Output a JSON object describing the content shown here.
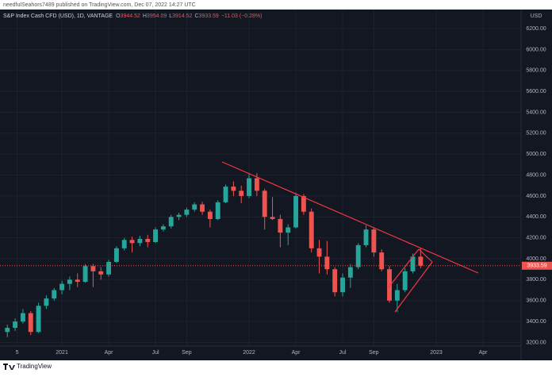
{
  "header": {
    "published": "needfulSeahors7489 published on TradingView.com, Dec 07, 2022 14:27 UTC",
    "footer": "TradingView"
  },
  "chart_data": {
    "type": "candlestick",
    "symbol": "S&P Index Cash CFD (USD), 1D, VANTAGE",
    "ohlc": [
      {
        "key": "O",
        "value": "3944.52"
      },
      {
        "key": "H",
        "value": "3954.09"
      },
      {
        "key": "L",
        "value": "3914.52"
      },
      {
        "key": "C",
        "value": "3933.59"
      }
    ],
    "change": "−11.03 (−0.28%)",
    "currency": "USD",
    "last_price_label": "3933.59",
    "up_color": "#26a69a",
    "down_color": "#ef5350",
    "grid": true,
    "x": [
      -3.5,
      -3,
      -2.5,
      -2,
      -1.5,
      -1,
      -0.5,
      0,
      0.5,
      1,
      1.5,
      2,
      2.5,
      3,
      3.5,
      4,
      4.5,
      5,
      5.5,
      6,
      6.5,
      7,
      7.5,
      8,
      8.5,
      9,
      9.5,
      10,
      10.5,
      11,
      11.5,
      12,
      12.5,
      13,
      13.5,
      14,
      14.5,
      15,
      15.5,
      16,
      16.5,
      17,
      17.5,
      18,
      18.5,
      19,
      19.5,
      20,
      20.5,
      21,
      21.5,
      22,
      22.5,
      23
    ],
    "open": [
      3300,
      3340,
      3400,
      3480,
      3300,
      3550,
      3620,
      3700,
      3760,
      3800,
      3780,
      3930,
      3880,
      3850,
      3970,
      4100,
      4180,
      4150,
      4190,
      4160,
      4280,
      4310,
      4400,
      4420,
      4470,
      4520,
      4450,
      4380,
      4540,
      4690,
      4650,
      4600,
      4770,
      4650,
      4400,
      4380,
      4250,
      4300,
      4600,
      4450,
      4100,
      4020,
      3900,
      3680,
      3820,
      3920,
      4130,
      4280,
      4060,
      3900,
      3600,
      3700,
      3880,
      4020
    ],
    "high": [
      3370,
      3430,
      3520,
      3500,
      3580,
      3650,
      3720,
      3790,
      3830,
      3860,
      3950,
      3950,
      3920,
      3990,
      4120,
      4200,
      4210,
      4220,
      4230,
      4300,
      4330,
      4420,
      4440,
      4490,
      4540,
      4545,
      4470,
      4560,
      4710,
      4740,
      4700,
      4810,
      4818,
      4670,
      4590,
      4420,
      4330,
      4630,
      4620,
      4480,
      4180,
      4170,
      3920,
      3860,
      3950,
      4150,
      4320,
      4300,
      4090,
      3930,
      3760,
      3910,
      4050,
      4100
    ],
    "low": [
      3250,
      3310,
      3380,
      3270,
      3290,
      3520,
      3600,
      3660,
      3700,
      3730,
      3770,
      3730,
      3800,
      3830,
      3960,
      4080,
      4060,
      4120,
      4110,
      4150,
      4260,
      4290,
      4370,
      4400,
      4450,
      4420,
      4300,
      4370,
      4530,
      4600,
      4530,
      4580,
      4600,
      4280,
      4370,
      4110,
      4130,
      4290,
      4420,
      4060,
      3860,
      3850,
      3640,
      3640,
      3720,
      3900,
      4110,
      4020,
      3880,
      3580,
      3490,
      3680,
      3860,
      3910
    ],
    "close": [
      3340,
      3400,
      3480,
      3300,
      3550,
      3620,
      3700,
      3760,
      3800,
      3780,
      3930,
      3880,
      3850,
      3970,
      4100,
      4180,
      4150,
      4190,
      4160,
      4280,
      4310,
      4400,
      4420,
      4470,
      4520,
      4450,
      4380,
      4540,
      4690,
      4650,
      4600,
      4770,
      4650,
      4400,
      4380,
      4250,
      4300,
      4600,
      4450,
      4100,
      4020,
      3900,
      3680,
      3820,
      3920,
      4130,
      4280,
      4060,
      3900,
      3600,
      3700,
      3880,
      4020,
      3933.59
    ],
    "xlim": [
      -3.97,
      29.44
    ],
    "xticks": [
      {
        "value": -2.87,
        "label": "5"
      },
      {
        "value": 0,
        "label": "2021"
      },
      {
        "value": 3,
        "label": "Apr"
      },
      {
        "value": 6,
        "label": "Jul"
      },
      {
        "value": 8,
        "label": "Sep"
      },
      {
        "value": 12,
        "label": "2022"
      },
      {
        "value": 15,
        "label": "Apr"
      },
      {
        "value": 18,
        "label": "Jul"
      },
      {
        "value": 20,
        "label": "Sep"
      },
      {
        "value": 24,
        "label": "2023"
      },
      {
        "value": 27,
        "label": "Apr"
      }
    ],
    "ylim": [
      3044,
      6368
    ],
    "yticks": [
      {
        "value": 3200,
        "label": "3200.00"
      },
      {
        "value": 3400,
        "label": "3400.00"
      },
      {
        "value": 3600,
        "label": "3600.00"
      },
      {
        "value": 3800,
        "label": "3800.00"
      },
      {
        "value": 4000,
        "label": "4000.00"
      },
      {
        "value": 4200,
        "label": "4200.00"
      },
      {
        "value": 4400,
        "label": "4400.00"
      },
      {
        "value": 4600,
        "label": "4600.00"
      },
      {
        "value": 4800,
        "label": "4800.00"
      },
      {
        "value": 5000,
        "label": "5000.00"
      },
      {
        "value": 5200,
        "label": "5200.00"
      },
      {
        "value": 5400,
        "label": "5400.00"
      },
      {
        "value": 5600,
        "label": "5600.00"
      },
      {
        "value": 5800,
        "label": "5800.00"
      },
      {
        "value": 6000,
        "label": "6000.00"
      },
      {
        "value": 6200,
        "label": "6200.00"
      }
    ]
  }
}
